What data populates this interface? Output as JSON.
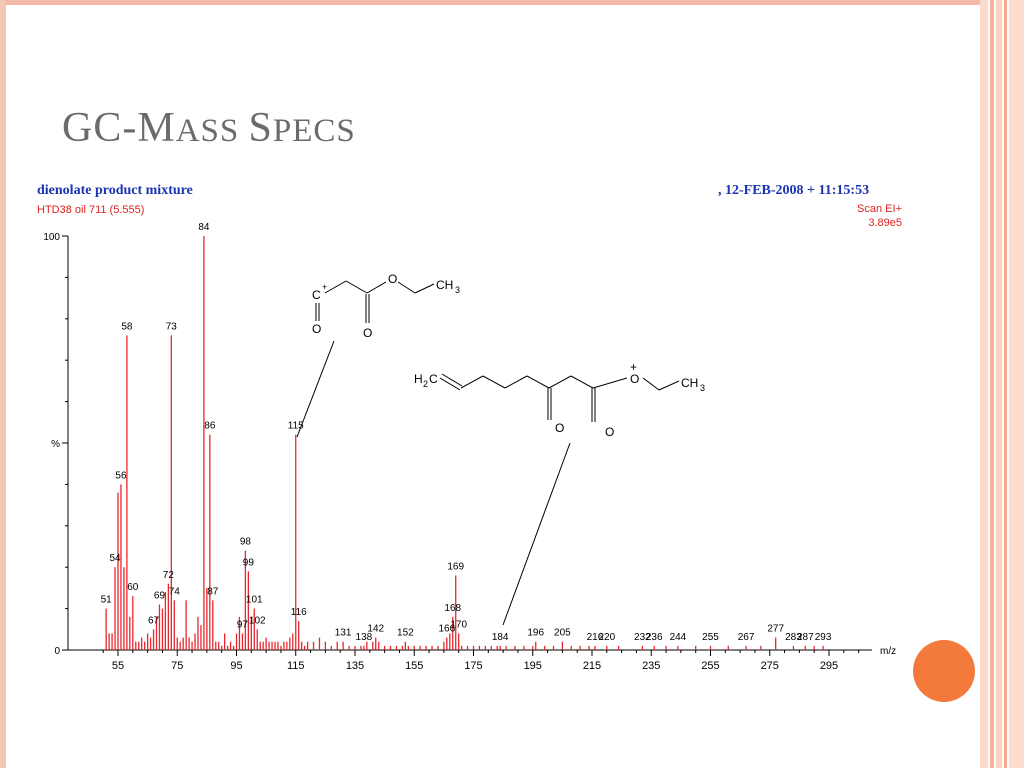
{
  "slide": {
    "title_first": "GC-M",
    "title_second": "ASS ",
    "title_third": "S",
    "title_fourth": "PECS"
  },
  "colors": {
    "peaks": "#e8262c",
    "header_blue": "#1a33b0",
    "accent_orange": "#f47a3c",
    "border": "#f4b8a6"
  },
  "chart_data": {
    "type": "bar",
    "title": "dienolate product mixture",
    "subtitle": "HTD38 oil 711 (5.555)",
    "date_text": ",  12-FEB-2008 + 11:15:53",
    "scan_text": "Scan EI+",
    "intensity_text": "3.89e5",
    "xlabel": "m/z",
    "ylabel": "%",
    "xlim": [
      45,
      305
    ],
    "ylim": [
      0,
      100
    ],
    "x_ticks": [
      55,
      75,
      95,
      115,
      135,
      155,
      175,
      195,
      215,
      235,
      255,
      275,
      295
    ],
    "y_tick_labels": [
      {
        "value": 100,
        "label": "100"
      },
      {
        "value": 50,
        "label": "%"
      },
      {
        "value": 0,
        "label": "0"
      }
    ],
    "grid": false,
    "peaks": [
      {
        "mz": 51,
        "intensity": 10,
        "label": "51"
      },
      {
        "mz": 52,
        "intensity": 4
      },
      {
        "mz": 53,
        "intensity": 4
      },
      {
        "mz": 54,
        "intensity": 20,
        "label": "54"
      },
      {
        "mz": 55,
        "intensity": 38
      },
      {
        "mz": 56,
        "intensity": 40,
        "label": "56"
      },
      {
        "mz": 57,
        "intensity": 20
      },
      {
        "mz": 58,
        "intensity": 76,
        "label": "58"
      },
      {
        "mz": 59,
        "intensity": 8
      },
      {
        "mz": 60,
        "intensity": 13,
        "label": "60"
      },
      {
        "mz": 61,
        "intensity": 2
      },
      {
        "mz": 62,
        "intensity": 2
      },
      {
        "mz": 63,
        "intensity": 3
      },
      {
        "mz": 64,
        "intensity": 2
      },
      {
        "mz": 65,
        "intensity": 4
      },
      {
        "mz": 66,
        "intensity": 3
      },
      {
        "mz": 67,
        "intensity": 5,
        "label": "67"
      },
      {
        "mz": 68,
        "intensity": 8
      },
      {
        "mz": 69,
        "intensity": 11,
        "label": "69"
      },
      {
        "mz": 70,
        "intensity": 10
      },
      {
        "mz": 71,
        "intensity": 14
      },
      {
        "mz": 72,
        "intensity": 16,
        "label": "72"
      },
      {
        "mz": 73,
        "intensity": 76,
        "label": "73"
      },
      {
        "mz": 74,
        "intensity": 12,
        "label": "74"
      },
      {
        "mz": 75,
        "intensity": 3
      },
      {
        "mz": 76,
        "intensity": 2
      },
      {
        "mz": 77,
        "intensity": 3
      },
      {
        "mz": 78,
        "intensity": 12
      },
      {
        "mz": 79,
        "intensity": 3
      },
      {
        "mz": 80,
        "intensity": 2
      },
      {
        "mz": 81,
        "intensity": 4
      },
      {
        "mz": 82,
        "intensity": 8
      },
      {
        "mz": 83,
        "intensity": 6
      },
      {
        "mz": 84,
        "intensity": 100,
        "label": "84"
      },
      {
        "mz": 85,
        "intensity": 15
      },
      {
        "mz": 86,
        "intensity": 52,
        "label": "86"
      },
      {
        "mz": 87,
        "intensity": 12,
        "label": "87"
      },
      {
        "mz": 88,
        "intensity": 2
      },
      {
        "mz": 89,
        "intensity": 2
      },
      {
        "mz": 90,
        "intensity": 1
      },
      {
        "mz": 91,
        "intensity": 4
      },
      {
        "mz": 92,
        "intensity": 1
      },
      {
        "mz": 93,
        "intensity": 2
      },
      {
        "mz": 94,
        "intensity": 1
      },
      {
        "mz": 95,
        "intensity": 4
      },
      {
        "mz": 96,
        "intensity": 8
      },
      {
        "mz": 97,
        "intensity": 4,
        "label": "97"
      },
      {
        "mz": 98,
        "intensity": 24,
        "label": "98"
      },
      {
        "mz": 99,
        "intensity": 19,
        "label": "99"
      },
      {
        "mz": 100,
        "intensity": 8
      },
      {
        "mz": 101,
        "intensity": 10,
        "label": "101"
      },
      {
        "mz": 102,
        "intensity": 5,
        "label": "102"
      },
      {
        "mz": 103,
        "intensity": 2
      },
      {
        "mz": 104,
        "intensity": 2
      },
      {
        "mz": 105,
        "intensity": 3
      },
      {
        "mz": 106,
        "intensity": 2
      },
      {
        "mz": 107,
        "intensity": 2
      },
      {
        "mz": 108,
        "intensity": 2
      },
      {
        "mz": 109,
        "intensity": 2
      },
      {
        "mz": 110,
        "intensity": 1
      },
      {
        "mz": 111,
        "intensity": 2
      },
      {
        "mz": 112,
        "intensity": 2
      },
      {
        "mz": 113,
        "intensity": 3
      },
      {
        "mz": 114,
        "intensity": 4
      },
      {
        "mz": 115,
        "intensity": 52,
        "label": "115"
      },
      {
        "mz": 116,
        "intensity": 7,
        "label": "116"
      },
      {
        "mz": 117,
        "intensity": 2
      },
      {
        "mz": 118,
        "intensity": 1
      },
      {
        "mz": 119,
        "intensity": 2
      },
      {
        "mz": 121,
        "intensity": 2
      },
      {
        "mz": 123,
        "intensity": 3
      },
      {
        "mz": 125,
        "intensity": 2
      },
      {
        "mz": 127,
        "intensity": 1
      },
      {
        "mz": 129,
        "intensity": 2
      },
      {
        "mz": 131,
        "intensity": 2,
        "label": "131"
      },
      {
        "mz": 133,
        "intensity": 1
      },
      {
        "mz": 135,
        "intensity": 1
      },
      {
        "mz": 137,
        "intensity": 1
      },
      {
        "mz": 138,
        "intensity": 1,
        "label": "138"
      },
      {
        "mz": 139,
        "intensity": 2
      },
      {
        "mz": 141,
        "intensity": 2
      },
      {
        "mz": 142,
        "intensity": 3,
        "label": "142"
      },
      {
        "mz": 143,
        "intensity": 2
      },
      {
        "mz": 145,
        "intensity": 1
      },
      {
        "mz": 147,
        "intensity": 1
      },
      {
        "mz": 149,
        "intensity": 1
      },
      {
        "mz": 151,
        "intensity": 1
      },
      {
        "mz": 152,
        "intensity": 2,
        "label": "152"
      },
      {
        "mz": 153,
        "intensity": 1
      },
      {
        "mz": 155,
        "intensity": 1
      },
      {
        "mz": 157,
        "intensity": 1
      },
      {
        "mz": 159,
        "intensity": 1
      },
      {
        "mz": 161,
        "intensity": 1
      },
      {
        "mz": 163,
        "intensity": 1
      },
      {
        "mz": 165,
        "intensity": 2
      },
      {
        "mz": 166,
        "intensity": 3,
        "label": "166"
      },
      {
        "mz": 167,
        "intensity": 4
      },
      {
        "mz": 168,
        "intensity": 8,
        "label": "168"
      },
      {
        "mz": 169,
        "intensity": 18,
        "label": "169"
      },
      {
        "mz": 170,
        "intensity": 4,
        "label": "170"
      },
      {
        "mz": 171,
        "intensity": 1
      },
      {
        "mz": 173,
        "intensity": 1
      },
      {
        "mz": 175,
        "intensity": 1
      },
      {
        "mz": 177,
        "intensity": 1
      },
      {
        "mz": 179,
        "intensity": 1
      },
      {
        "mz": 181,
        "intensity": 1
      },
      {
        "mz": 183,
        "intensity": 1
      },
      {
        "mz": 184,
        "intensity": 1,
        "label": "184"
      },
      {
        "mz": 186,
        "intensity": 1
      },
      {
        "mz": 189,
        "intensity": 1
      },
      {
        "mz": 192,
        "intensity": 1
      },
      {
        "mz": 195,
        "intensity": 1
      },
      {
        "mz": 196,
        "intensity": 2,
        "label": "196"
      },
      {
        "mz": 199,
        "intensity": 1
      },
      {
        "mz": 202,
        "intensity": 1
      },
      {
        "mz": 205,
        "intensity": 2,
        "label": "205"
      },
      {
        "mz": 208,
        "intensity": 1
      },
      {
        "mz": 211,
        "intensity": 1
      },
      {
        "mz": 214,
        "intensity": 1
      },
      {
        "mz": 216,
        "intensity": 1,
        "label": "216"
      },
      {
        "mz": 220,
        "intensity": 1,
        "label": "220"
      },
      {
        "mz": 224,
        "intensity": 1
      },
      {
        "mz": 232,
        "intensity": 1,
        "label": "232"
      },
      {
        "mz": 236,
        "intensity": 1,
        "label": "236"
      },
      {
        "mz": 240,
        "intensity": 1
      },
      {
        "mz": 244,
        "intensity": 1,
        "label": "244"
      },
      {
        "mz": 250,
        "intensity": 1
      },
      {
        "mz": 255,
        "intensity": 1,
        "label": "255"
      },
      {
        "mz": 261,
        "intensity": 1
      },
      {
        "mz": 267,
        "intensity": 1,
        "label": "267"
      },
      {
        "mz": 272,
        "intensity": 1
      },
      {
        "mz": 277,
        "intensity": 3,
        "label": "277"
      },
      {
        "mz": 283,
        "intensity": 1,
        "label": "283"
      },
      {
        "mz": 287,
        "intensity": 1,
        "label": "287"
      },
      {
        "mz": 290,
        "intensity": 1
      },
      {
        "mz": 293,
        "intensity": 1,
        "label": "293"
      }
    ],
    "annotations": [
      {
        "peak": 115,
        "structure_labels": {
          "cation": "C",
          "charge": "+",
          "oxygen_acylium": "O",
          "oxygen_carbonyl": "O",
          "oxygen_ester": "O",
          "methyl": "CH",
          "methyl_sub": "3"
        }
      },
      {
        "peak": 184,
        "structure_labels": {
          "vinyl": "H",
          "vinyl_sub": "2",
          "vinyl_c": "C",
          "charge": "+",
          "oxygen_ketone": "O",
          "oxygen_carbonyl": "O",
          "oxygen_ester": "O",
          "methyl": "CH",
          "methyl_sub": "3"
        }
      }
    ]
  }
}
